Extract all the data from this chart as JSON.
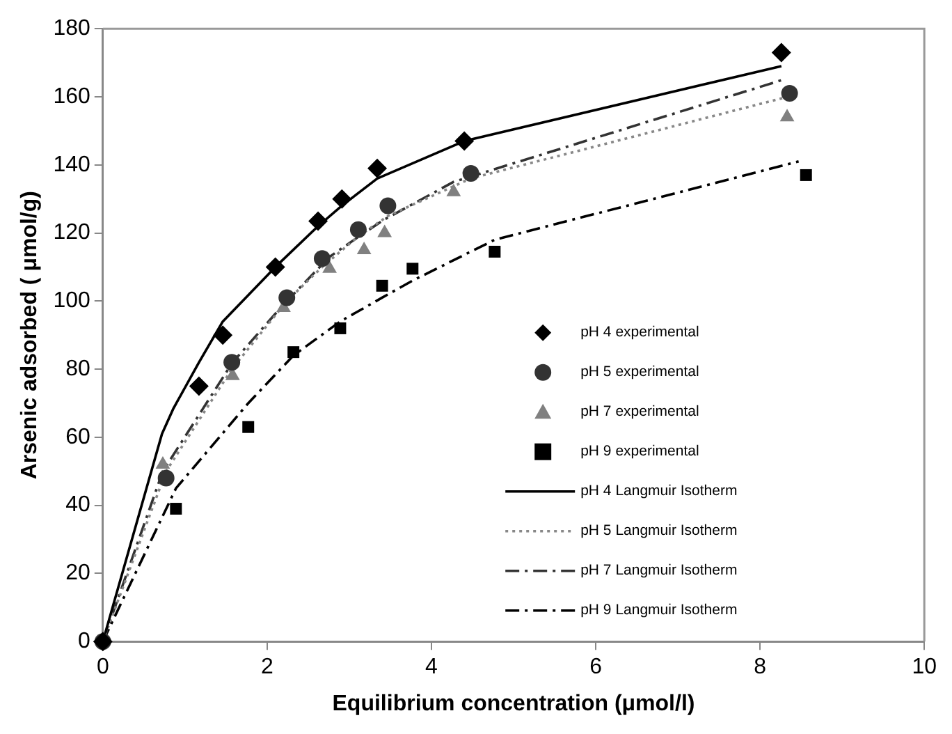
{
  "chart_data": {
    "type": "scatter",
    "xlabel": "Equilibrium concentration (μmol/l)",
    "ylabel": "Arsenic adsorbed ( μmol/g)",
    "xlim": [
      0,
      10
    ],
    "xticks": [
      0,
      2,
      4,
      6,
      8,
      10
    ],
    "ylim": [
      0,
      180
    ],
    "yticks": [
      0,
      20,
      40,
      60,
      80,
      100,
      120,
      140,
      160,
      180
    ],
    "grid": false,
    "legend": "bottom right",
    "series": [
      {
        "name": "pH 4 experimental",
        "type": "scatter",
        "marker": "diamond",
        "color": "#000000",
        "x": [
          0,
          1.17,
          1.46,
          2.1,
          2.62,
          2.91,
          3.34,
          4.4,
          8.26
        ],
        "values": [
          0,
          75,
          90,
          110,
          123.5,
          130,
          139,
          147,
          173
        ]
      },
      {
        "name": "pH 5 experimental",
        "type": "scatter",
        "marker": "circle",
        "color": "#333333",
        "x": [
          0,
          0.77,
          1.57,
          2.24,
          2.67,
          3.11,
          3.47,
          4.48,
          8.36
        ],
        "values": [
          0,
          48,
          82,
          101,
          112.5,
          121,
          128,
          137.5,
          161
        ]
      },
      {
        "name": "pH 7 experimental",
        "type": "scatter",
        "marker": "triangle",
        "color": "#808080",
        "x": [
          0.73,
          1.58,
          2.2,
          2.76,
          3.18,
          3.43,
          4.27,
          8.33
        ],
        "values": [
          52,
          78,
          98,
          109.5,
          115,
          120,
          132,
          154
        ]
      },
      {
        "name": "pH 9 experimental",
        "type": "scatter",
        "marker": "square",
        "color": "#000000",
        "x": [
          0.89,
          1.77,
          2.32,
          2.89,
          3.4,
          3.77,
          4.77,
          8.56
        ],
        "values": [
          39,
          63,
          85,
          92,
          104.5,
          109.5,
          114.5,
          137
        ]
      },
      {
        "name": "pH 4 Langmuir Isotherm",
        "type": "line",
        "marker": "none",
        "line_style": "solid",
        "color": "#000000",
        "x": [
          0,
          0.72,
          0.86,
          1.17,
          1.46,
          2.1,
          2.62,
          2.91,
          3.34,
          4.4,
          8.26
        ],
        "values": [
          0,
          61,
          68.5,
          82,
          94,
          110,
          122,
          128,
          136,
          147,
          169
        ]
      },
      {
        "name": "pH 5 Langmuir Isotherm",
        "type": "line",
        "marker": "none",
        "line_style": "dotted",
        "color": "#888888",
        "x": [
          0,
          0.77,
          1.57,
          2.24,
          2.67,
          3.11,
          3.47,
          4.48,
          8.34
        ],
        "values": [
          0,
          50,
          80,
          100,
          110,
          119,
          125,
          136,
          160
        ]
      },
      {
        "name": "pH 7 Langmuir Isotherm",
        "type": "line",
        "marker": "none",
        "line_style": "dashed",
        "color": "#333333",
        "x": [
          0,
          0.73,
          1.58,
          2.2,
          2.76,
          3.18,
          3.43,
          4.27,
          8.28
        ],
        "values": [
          0,
          50,
          82,
          99,
          113,
          120,
          124,
          135,
          165
        ]
      },
      {
        "name": "pH 9 Langmuir Isotherm",
        "type": "line",
        "marker": "none",
        "line_style": "dashed",
        "color": "#000000",
        "x": [
          0,
          0.89,
          1.77,
          2.32,
          2.89,
          3.4,
          3.77,
          4.77,
          8.47
        ],
        "values": [
          0,
          45,
          70,
          84,
          94,
          101,
          106,
          118,
          141
        ]
      }
    ]
  }
}
